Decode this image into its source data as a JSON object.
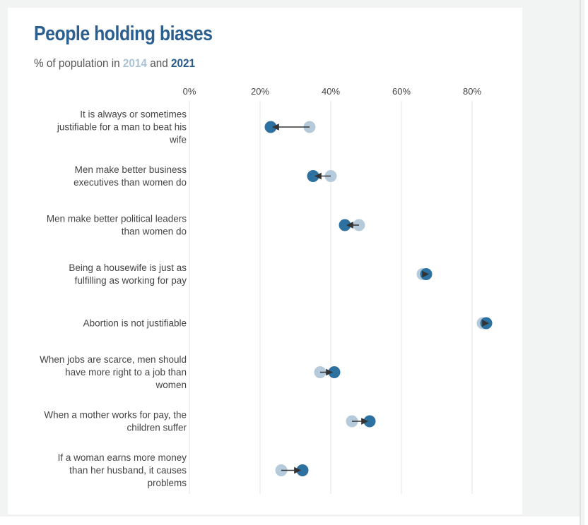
{
  "title": "People holding biases",
  "subtitle": {
    "prefix": "% of population in",
    "year_a": "2014",
    "joiner": "and",
    "year_b": "2021"
  },
  "colors": {
    "title": "#2b5f8f",
    "dot_2014": "#b5cbdb",
    "dot_2021": "#2c71a0",
    "arrow": "#333333",
    "grid": "#e6e6e6"
  },
  "chart_data": {
    "type": "dumbbell",
    "title": "People holding biases",
    "subtitle": "% of population in 2014 and 2021",
    "xlim": [
      0,
      85
    ],
    "xticks": [
      0,
      20,
      40,
      60,
      80
    ],
    "tick_labels": [
      "0%",
      "20%",
      "40%",
      "60%",
      "80%"
    ],
    "grid": true,
    "series": [
      {
        "name": "2014",
        "color": "#b5cbdb"
      },
      {
        "name": "2021",
        "color": "#2c71a0"
      }
    ],
    "categories": [
      {
        "lines": [
          "It is always or sometimes",
          "justifiable for a man to beat his",
          "wife"
        ],
        "v2014": 34,
        "v2021": 23
      },
      {
        "lines": [
          "Men make better business",
          "executives than women do"
        ],
        "v2014": 40,
        "v2021": 35
      },
      {
        "lines": [
          "Men make better political leaders",
          "than women do"
        ],
        "v2014": 48,
        "v2021": 44
      },
      {
        "lines": [
          "Being a housewife is just as",
          "fulfilling as working for pay"
        ],
        "v2014": 66,
        "v2021": 67
      },
      {
        "lines": [
          "Abortion is not justifiable"
        ],
        "v2014": 83,
        "v2021": 84
      },
      {
        "lines": [
          "When jobs are scarce, men should",
          "have more right to a job than",
          "women"
        ],
        "v2014": 37,
        "v2021": 41
      },
      {
        "lines": [
          "When a mother works for pay, the",
          "children suffer"
        ],
        "v2014": 46,
        "v2021": 51
      },
      {
        "lines": [
          "If a woman earns more money",
          "than her husband, it causes",
          "problems"
        ],
        "v2014": 26,
        "v2021": 32
      }
    ]
  }
}
